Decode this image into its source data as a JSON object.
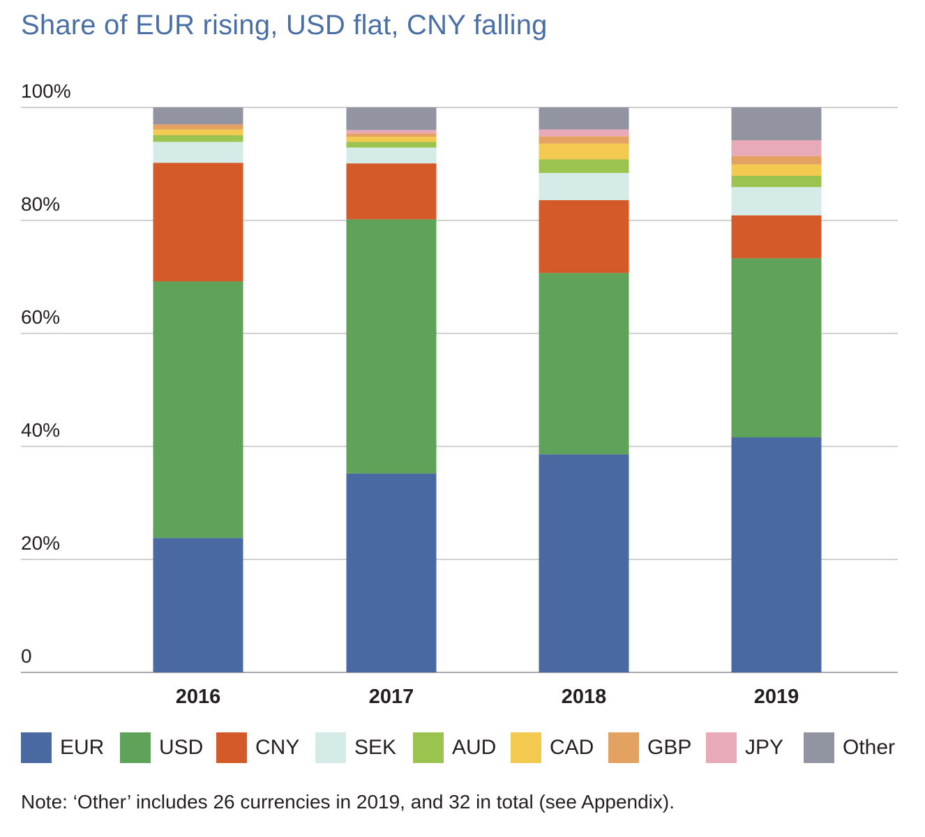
{
  "title": "Share of EUR rising, USD flat, CNY falling",
  "note": "Note: ‘Other’ includes 26 currencies in 2019, and 32 in total (see Appendix).",
  "chart_data": {
    "type": "bar",
    "stacked": true,
    "title": "Share of EUR rising, USD flat, CNY falling",
    "xlabel": "",
    "ylabel": "",
    "ylim": [
      0,
      100
    ],
    "yticks": [
      "0",
      "20%",
      "40%",
      "60%",
      "80%",
      "100%"
    ],
    "ytick_values": [
      0,
      20,
      40,
      60,
      80,
      100
    ],
    "grid": true,
    "legend_position": "bottom",
    "categories": [
      "2016",
      "2017",
      "2018",
      "2019"
    ],
    "series": [
      {
        "name": "EUR",
        "color": "#4a69a3",
        "values": [
          23.8,
          35.2,
          38.6,
          41.6
        ]
      },
      {
        "name": "USD",
        "color": "#5fa35a",
        "values": [
          45.4,
          45.0,
          32.1,
          31.7
        ]
      },
      {
        "name": "CNY",
        "color": "#d55a2a",
        "values": [
          21.0,
          9.9,
          12.9,
          7.6
        ]
      },
      {
        "name": "SEK",
        "color": "#d4ebe7",
        "values": [
          3.7,
          2.8,
          4.8,
          5.0
        ]
      },
      {
        "name": "AUD",
        "color": "#9bc34f",
        "values": [
          1.2,
          1.0,
          2.4,
          2.0
        ]
      },
      {
        "name": "CAD",
        "color": "#f3c94f",
        "values": [
          1.0,
          0.9,
          2.8,
          2.0
        ]
      },
      {
        "name": "GBP",
        "color": "#e4a262",
        "values": [
          0.9,
          0.6,
          1.3,
          1.5
        ]
      },
      {
        "name": "JPY",
        "color": "#e8aab8",
        "values": [
          0.0,
          0.6,
          1.2,
          2.8
        ]
      },
      {
        "name": "Other",
        "color": "#9394a1",
        "values": [
          3.0,
          4.0,
          3.9,
          5.8
        ]
      }
    ]
  }
}
